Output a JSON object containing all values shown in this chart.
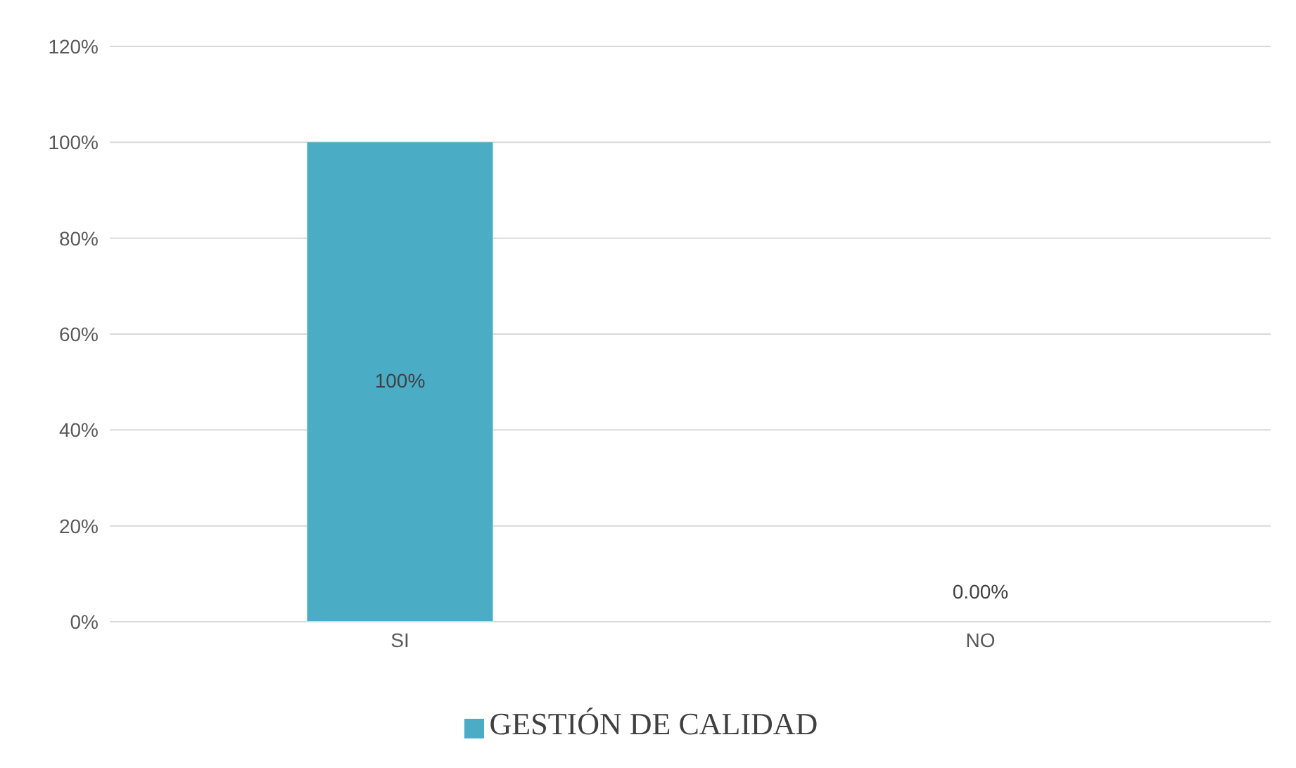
{
  "chart_data": {
    "type": "bar",
    "categories": [
      "SI",
      "NO"
    ],
    "series": [
      {
        "name": "GESTIÓN DE CALIDAD",
        "color": "#4bacc6",
        "values": [
          100,
          0
        ],
        "value_labels": [
          "100%",
          "0.00%"
        ]
      }
    ],
    "ylim": [
      0,
      120
    ],
    "yticks": [
      {
        "value": 0,
        "label": "0%"
      },
      {
        "value": 20,
        "label": "20%"
      },
      {
        "value": 40,
        "label": "40%"
      },
      {
        "value": 60,
        "label": "60%"
      },
      {
        "value": 80,
        "label": "80%"
      },
      {
        "value": 100,
        "label": "100%"
      },
      {
        "value": 120,
        "label": "120%"
      }
    ],
    "grid": "y",
    "legend": "bottom"
  }
}
